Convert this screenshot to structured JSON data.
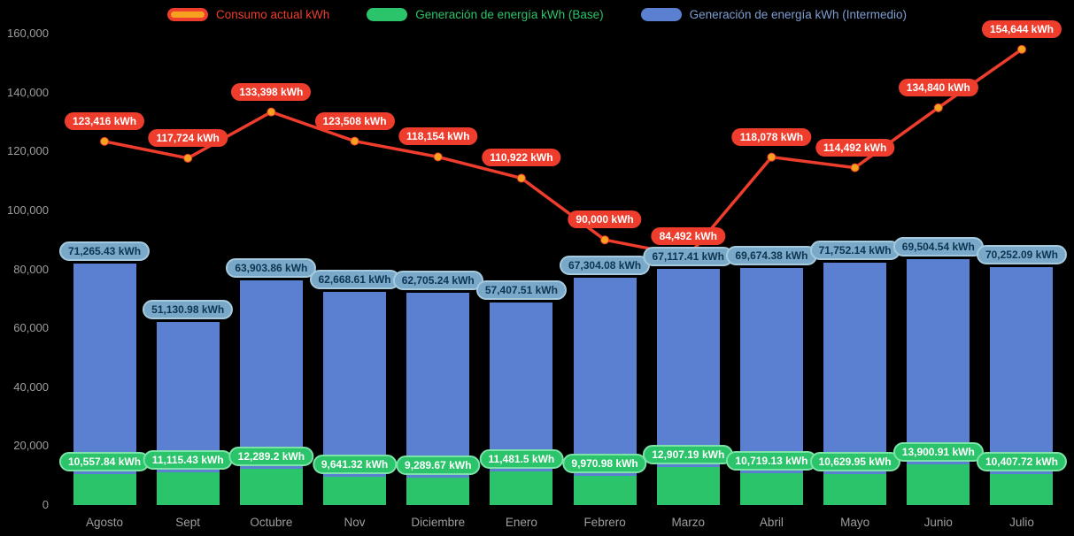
{
  "legend": {
    "items": [
      {
        "label": "Consumo actual kWh"
      },
      {
        "label": "Generación de energía kWh (Base)"
      },
      {
        "label": "Generación de energía kWh (Intermedio)"
      }
    ]
  },
  "chart_data": {
    "type": "bar",
    "subtype": "stacked-bars-with-line",
    "title": "",
    "legend_position": "top",
    "grid": false,
    "categories": [
      "Agosto",
      "Sept",
      "Octubre",
      "Nov",
      "Diciembre",
      "Enero",
      "Febrero",
      "Marzo",
      "Abril",
      "Mayo",
      "Junio",
      "Julio"
    ],
    "y_axis": {
      "min": 0,
      "max": 160000,
      "tick_step": 20000,
      "tick_labels": [
        "0",
        "20,000",
        "40,000",
        "60,000",
        "80,000",
        "100,000",
        "120,000",
        "140,000",
        "160,000"
      ]
    },
    "series": [
      {
        "name": "Consumo actual kWh",
        "type": "line",
        "values": [
          123416,
          117724,
          133398,
          123508,
          118154,
          110922,
          90000,
          84492,
          118078,
          114492,
          134840,
          154644
        ],
        "labels": [
          "123,416 kWh",
          "117,724 kWh",
          "133,398 kWh",
          "123,508 kWh",
          "118,154 kWh",
          "110,922 kWh",
          "90,000 kWh",
          "84,492 kWh",
          "118,078 kWh",
          "114,492 kWh",
          "134,840 kWh",
          "154,644 kWh"
        ]
      },
      {
        "name": "Generación de energía kWh (Base)",
        "type": "bar",
        "stack": "generation",
        "values": [
          10557.84,
          11115.43,
          12289.2,
          9641.32,
          9289.67,
          11481.5,
          9970.98,
          12907.19,
          10719.13,
          10629.95,
          13900.91,
          10407.72
        ],
        "labels": [
          "10,557.84 kWh",
          "11,115.43 kWh",
          "12,289.2 kWh",
          "9,641.32 kWh",
          "9,289.67 kWh",
          "11,481.5 kWh",
          "9,970.98 kWh",
          "12,907.19 kWh",
          "10,719.13 kWh",
          "10,629.95 kWh",
          "13,900.91 kWh",
          "10,407.72 kWh"
        ]
      },
      {
        "name": "Generación de energía kWh (Intermedio)",
        "type": "bar",
        "stack": "generation",
        "values": [
          71265.43,
          51130.98,
          63903.86,
          62668.61,
          62705.24,
          57407.51,
          67304.08,
          67117.41,
          69674.38,
          71752.14,
          69504.54,
          70252.09
        ],
        "labels": [
          "71,265.43 kWh",
          "51,130.98 kWh",
          "63,903.86 kWh",
          "62,668.61 kWh",
          "62,705.24 kWh",
          "57,407.51 kWh",
          "67,304.08 kWh",
          "67,117.41 kWh",
          "69,674.38 kWh",
          "71,752.14 kWh",
          "69,504.54 kWh",
          "70,252.09 kWh"
        ]
      }
    ],
    "colors": {
      "background": "#000000",
      "axis_text": "#9e9e9e",
      "consumption_line": "#ee3d2c",
      "consumption_label_bg": "#ee3d2c",
      "marker": "#f6a21e",
      "base_bar": "#2bc46a",
      "base_label_bg": "#2bc46a",
      "base_label_border": "#7be3a8",
      "intermediate_bar": "#5b80d1",
      "legend_intermediate_text": "#7e9ed2",
      "intermediate_label_bg": "#79a8c9",
      "intermediate_label_text": "#0d3550",
      "intermediate_label_border": "#a5cade"
    }
  }
}
